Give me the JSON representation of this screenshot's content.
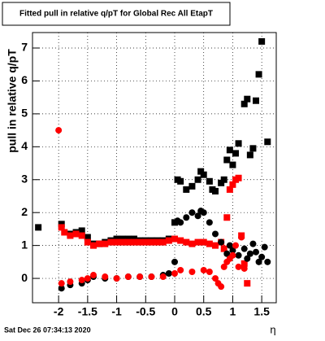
{
  "chart_data": {
    "type": "scatter",
    "title": "Fitted pull in relative q/pT  for Global Rec All EtapT",
    "y_label": "pull in relative q/pT",
    "x_label": "η",
    "date": "Sat Dec 26 07:34:13 2020",
    "xlim": [
      -2.45,
      1.75
    ],
    "ylim": [
      -0.74,
      7.47
    ],
    "xticks": [
      -2,
      -1.5,
      -1,
      -0.5,
      0,
      0.5,
      1,
      1.5
    ],
    "yticks": [
      0,
      1,
      2,
      3,
      4,
      5,
      6,
      7
    ],
    "grid": true,
    "series": [
      {
        "color": "#000000",
        "marker": "square",
        "x": [
          -2.35,
          -1.95,
          -1.8,
          -1.7,
          -1.6,
          -1.5,
          -1.4,
          -1.3,
          -1.2,
          -1.1,
          -1.0,
          -0.9,
          -0.8,
          -0.7,
          -0.6,
          -0.5,
          -0.4,
          -0.3,
          -0.2,
          -0.1,
          0,
          0.05,
          0.1,
          0.2,
          0.3,
          0.4,
          0.45,
          0.5,
          0.6,
          0.65,
          0.7,
          0.8,
          0.85,
          0.9,
          0.95,
          1.0,
          1.05,
          1.1,
          1.2,
          1.25,
          1.3,
          1.35,
          1.4,
          1.45,
          1.5,
          1.6
        ],
        "values": [
          1.55,
          1.65,
          1.35,
          1.4,
          1.45,
          1.25,
          1.05,
          1.05,
          1.1,
          1.15,
          1.2,
          1.2,
          1.2,
          1.2,
          1.15,
          1.15,
          1.15,
          1.15,
          1.15,
          1.2,
          1.7,
          3.0,
          2.95,
          2.7,
          2.8,
          3.0,
          3.25,
          3.15,
          2.95,
          2.7,
          2.65,
          2.9,
          3.0,
          3.6,
          3.9,
          3.45,
          3.8,
          4.1,
          5.3,
          5.45,
          3.75,
          3.95,
          5.4,
          6.2,
          7.2,
          4.15
        ]
      },
      {
        "color": "#ff0000",
        "marker": "square",
        "x": [
          -1.95,
          -1.9,
          -1.8,
          -1.7,
          -1.6,
          -1.5,
          -1.4,
          -1.3,
          -1.2,
          -1.1,
          -1.0,
          -0.9,
          -0.8,
          -0.7,
          -0.6,
          -0.5,
          -0.4,
          -0.3,
          -0.2,
          -0.1,
          0,
          0.1,
          0.2,
          0.3,
          0.4,
          0.5,
          0.6,
          0.7,
          0.8,
          0.85,
          0.9,
          0.95,
          1.0,
          1.05,
          1.1,
          1.15,
          1.2,
          1.25
        ],
        "values": [
          1.55,
          1.4,
          1.3,
          1.35,
          1.3,
          1.1,
          1.0,
          1.05,
          1.05,
          1.1,
          1.1,
          1.1,
          1.1,
          1.1,
          1.1,
          1.1,
          1.1,
          1.1,
          1.1,
          1.15,
          1.2,
          1.15,
          1.1,
          1.05,
          1.1,
          1.1,
          1.05,
          1.0,
          1.1,
          0.9,
          1.85,
          2.7,
          2.85,
          3.0,
          3.05,
          1.3,
          0.45,
          -0.15
        ]
      },
      {
        "color": "#000000",
        "marker": "circle",
        "x": [
          -1.95,
          -1.8,
          -1.6,
          -1.5,
          -1.4,
          -1.2,
          -1.0,
          -0.8,
          -0.6,
          -0.4,
          -0.2,
          -0.1,
          0,
          0.05,
          0.1,
          0.2,
          0.3,
          0.4,
          0.45,
          0.5,
          0.6,
          0.7,
          0.8,
          0.9,
          0.95,
          1.0,
          1.1,
          1.2,
          1.25,
          1.3,
          1.35,
          1.4,
          1.45,
          1.5,
          1.55,
          1.6
        ],
        "values": [
          -0.3,
          -0.2,
          -0.15,
          -0.05,
          0.05,
          0.0,
          0.0,
          0.05,
          0.05,
          0.05,
          0.1,
          0.15,
          0.5,
          1.75,
          1.7,
          1.85,
          2.0,
          1.9,
          2.05,
          2.0,
          1.7,
          1.35,
          1.1,
          0.75,
          1.0,
          0.85,
          0.7,
          0.9,
          0.6,
          0.75,
          1.05,
          0.8,
          0.5,
          0.65,
          0.95,
          0.5
        ]
      },
      {
        "color": "#ff0000",
        "marker": "circle",
        "x": [
          -2,
          -1.95,
          -1.8,
          -1.6,
          -1.5,
          -1.4,
          -1.2,
          -1.0,
          -0.8,
          -0.6,
          -0.4,
          -0.2,
          0,
          0.1,
          0.3,
          0.5,
          0.6,
          0.7,
          0.75,
          0.8,
          0.85,
          0.9,
          0.95,
          1.0,
          1.05,
          1.1,
          1.15,
          1.2
        ],
        "values": [
          4.5,
          -0.15,
          -0.1,
          -0.05,
          0.0,
          0.1,
          0.05,
          0.0,
          0.05,
          0.05,
          0.05,
          0.05,
          0.15,
          0.25,
          0.2,
          0.25,
          0.2,
          0.0,
          -0.15,
          -0.25,
          0.35,
          0.5,
          0.6,
          0.7,
          1.0,
          0.35,
          1.25,
          0.3
        ]
      }
    ]
  }
}
